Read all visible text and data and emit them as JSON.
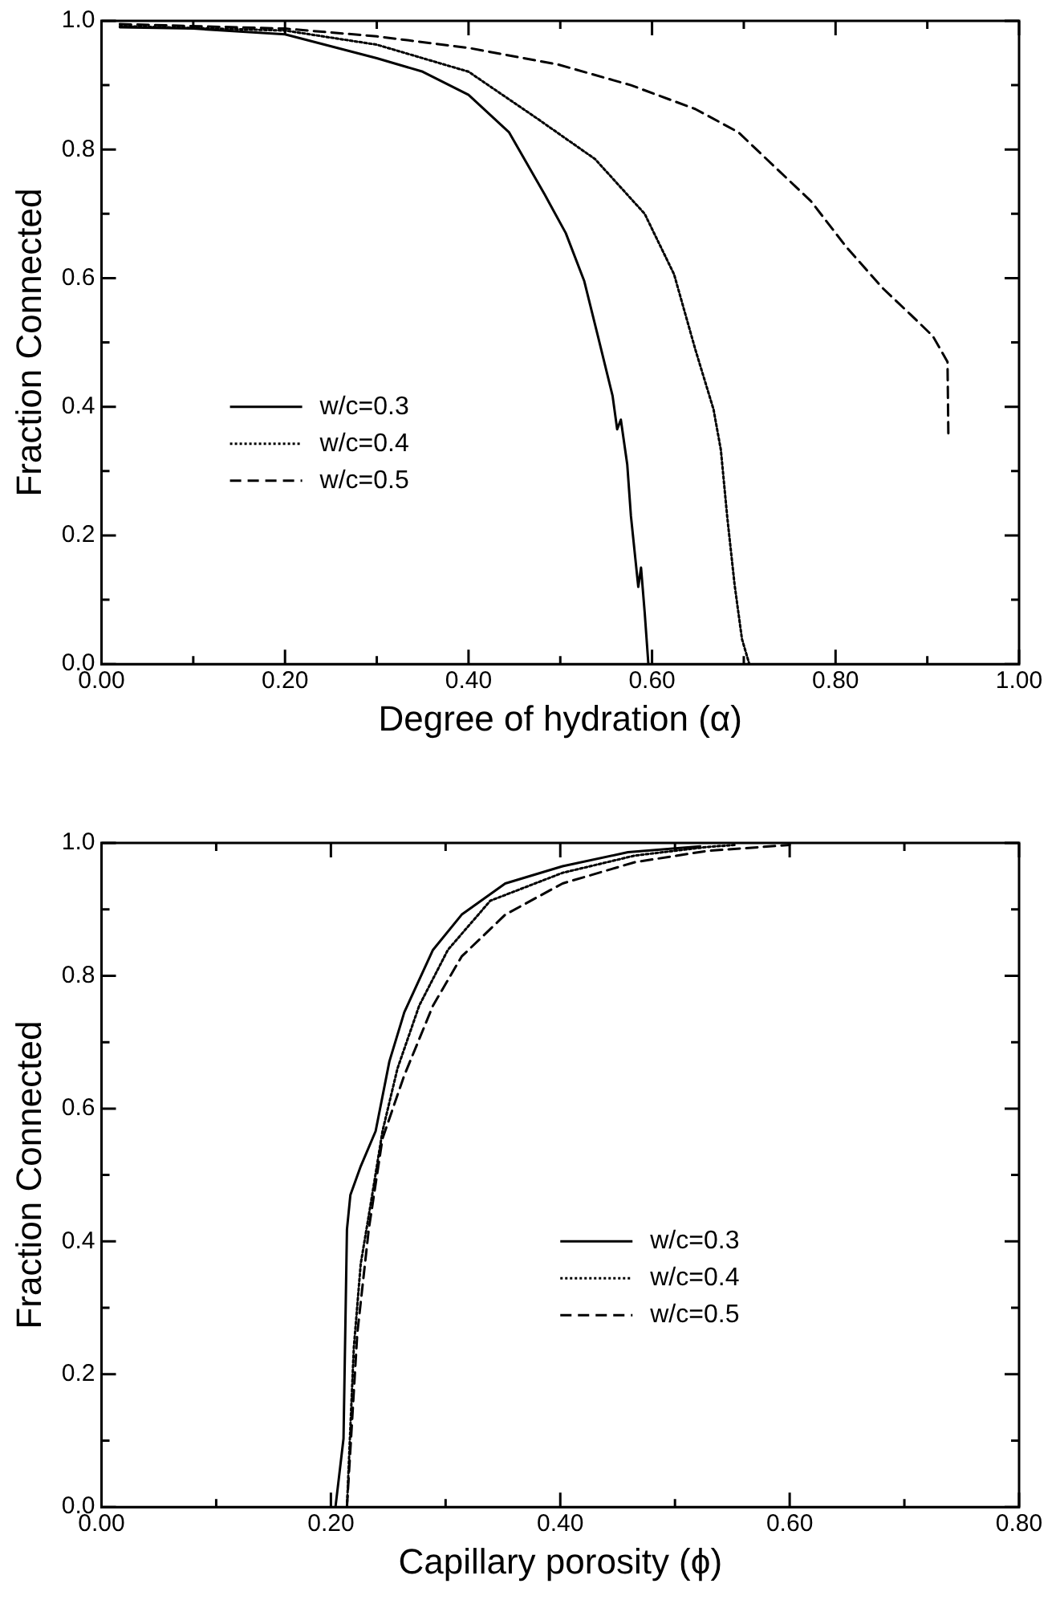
{
  "chart_data": [
    {
      "type": "line",
      "xlabel": "Degree of hydration (α)",
      "ylabel": "Fraction Connected",
      "legend": "bottom left",
      "grid": false,
      "marker": "none",
      "xlim": [
        0,
        1
      ],
      "ylim": [
        0,
        1
      ],
      "xticks": [
        {
          "value": 0,
          "label": "0.00"
        },
        {
          "value": 0.1,
          "label": null
        },
        {
          "value": 0.2,
          "label": "0.20"
        },
        {
          "value": 0.3,
          "label": null
        },
        {
          "value": 0.4,
          "label": "0.40"
        },
        {
          "value": 0.5,
          "label": null
        },
        {
          "value": 0.6,
          "label": "0.60"
        },
        {
          "value": 0.7,
          "label": null
        },
        {
          "value": 0.8,
          "label": "0.80"
        },
        {
          "value": 0.9,
          "label": null
        },
        {
          "value": 1,
          "label": "1.00"
        }
      ],
      "yticks": [
        {
          "value": 0,
          "label": "0.0"
        },
        {
          "value": 0.1,
          "label": null
        },
        {
          "value": 0.2,
          "label": "0.2"
        },
        {
          "value": 0.3,
          "label": null
        },
        {
          "value": 0.4,
          "label": "0.4"
        },
        {
          "value": 0.5,
          "label": null
        },
        {
          "value": 0.6,
          "label": "0.6"
        },
        {
          "value": 0.7,
          "label": null
        },
        {
          "value": 0.8,
          "label": "0.8"
        },
        {
          "value": 0.9,
          "label": null
        },
        {
          "value": 1,
          "label": "1.0"
        }
      ],
      "series": [
        {
          "name": "w/c=0.3",
          "color": "#000000",
          "line_style": "solid",
          "x": [
            0.02,
            0.1,
            0.2,
            0.3,
            0.35,
            0.4,
            0.444,
            0.483,
            0.506,
            0.526,
            0.541,
            0.557,
            0.562,
            0.566,
            0.573,
            0.577,
            0.585,
            0.588,
            0.592,
            0.596
          ],
          "values": [
            0.99,
            0.988,
            0.979,
            0.942,
            0.921,
            0.885,
            0.827,
            0.73,
            0.67,
            0.596,
            0.51,
            0.417,
            0.365,
            0.38,
            0.31,
            0.23,
            0.12,
            0.15,
            0.08,
            0.0
          ]
        },
        {
          "name": "w/c=0.4",
          "color": "#000000",
          "line_style": "dotted",
          "x": [
            0.02,
            0.2,
            0.3,
            0.4,
            0.475,
            0.538,
            0.592,
            0.624,
            0.647,
            0.667,
            0.675,
            0.682,
            0.69,
            0.698,
            0.706
          ],
          "values": [
            0.992,
            0.985,
            0.963,
            0.921,
            0.848,
            0.785,
            0.7,
            0.606,
            0.49,
            0.396,
            0.333,
            0.228,
            0.123,
            0.039,
            0.0
          ]
        },
        {
          "name": "w/c=0.5",
          "color": "#000000",
          "line_style": "dashed",
          "x": [
            0.02,
            0.2,
            0.3,
            0.4,
            0.498,
            0.577,
            0.647,
            0.694,
            0.733,
            0.773,
            0.812,
            0.851,
            0.882,
            0.906,
            0.922,
            0.923
          ],
          "values": [
            0.995,
            0.988,
            0.976,
            0.958,
            0.932,
            0.9,
            0.863,
            0.827,
            0.774,
            0.72,
            0.648,
            0.585,
            0.543,
            0.51,
            0.47,
            0.35
          ]
        }
      ]
    },
    {
      "type": "line",
      "xlabel": "Capillary porosity (ϕ)",
      "ylabel": "Fraction Connected",
      "legend": "bottom right",
      "grid": false,
      "marker": "none",
      "xlim": [
        0,
        0.8
      ],
      "ylim": [
        0,
        1
      ],
      "xticks": [
        {
          "value": 0,
          "label": "0.00"
        },
        {
          "value": 0.1,
          "label": null
        },
        {
          "value": 0.2,
          "label": "0.20"
        },
        {
          "value": 0.3,
          "label": null
        },
        {
          "value": 0.4,
          "label": "0.40"
        },
        {
          "value": 0.5,
          "label": null
        },
        {
          "value": 0.6,
          "label": "0.60"
        },
        {
          "value": 0.7,
          "label": null
        },
        {
          "value": 0.8,
          "label": "0.80"
        }
      ],
      "yticks": [
        {
          "value": 0,
          "label": "0.0"
        },
        {
          "value": 0.1,
          "label": null
        },
        {
          "value": 0.2,
          "label": "0.2"
        },
        {
          "value": 0.3,
          "label": null
        },
        {
          "value": 0.4,
          "label": "0.4"
        },
        {
          "value": 0.5,
          "label": null
        },
        {
          "value": 0.6,
          "label": "0.6"
        },
        {
          "value": 0.7,
          "label": null
        },
        {
          "value": 0.8,
          "label": "0.8"
        },
        {
          "value": 0.9,
          "label": null
        },
        {
          "value": 1,
          "label": "1.0"
        }
      ],
      "series": [
        {
          "name": "w/c=0.3",
          "color": "#000000",
          "line_style": "solid",
          "x": [
            0.204,
            0.211,
            0.214,
            0.217,
            0.226,
            0.239,
            0.251,
            0.264,
            0.289,
            0.314,
            0.352,
            0.402,
            0.459,
            0.522
          ],
          "values": [
            0.0,
            0.103,
            0.418,
            0.47,
            0.513,
            0.566,
            0.671,
            0.745,
            0.839,
            0.892,
            0.939,
            0.965,
            0.986,
            0.995
          ]
        },
        {
          "name": "w/c=0.4",
          "color": "#000000",
          "line_style": "dotted",
          "x": [
            0.214,
            0.22,
            0.226,
            0.236,
            0.245,
            0.258,
            0.277,
            0.302,
            0.339,
            0.402,
            0.465,
            0.528,
            0.553
          ],
          "values": [
            0.0,
            0.24,
            0.366,
            0.47,
            0.566,
            0.66,
            0.755,
            0.839,
            0.913,
            0.955,
            0.981,
            0.994,
            0.997
          ]
        },
        {
          "name": "w/c=0.5",
          "color": "#000000",
          "line_style": "dashed",
          "x": [
            0.214,
            0.223,
            0.233,
            0.245,
            0.264,
            0.289,
            0.314,
            0.352,
            0.402,
            0.465,
            0.528,
            0.6
          ],
          "values": [
            0.0,
            0.261,
            0.418,
            0.555,
            0.65,
            0.755,
            0.829,
            0.892,
            0.939,
            0.971,
            0.988,
            0.997
          ]
        }
      ]
    }
  ]
}
